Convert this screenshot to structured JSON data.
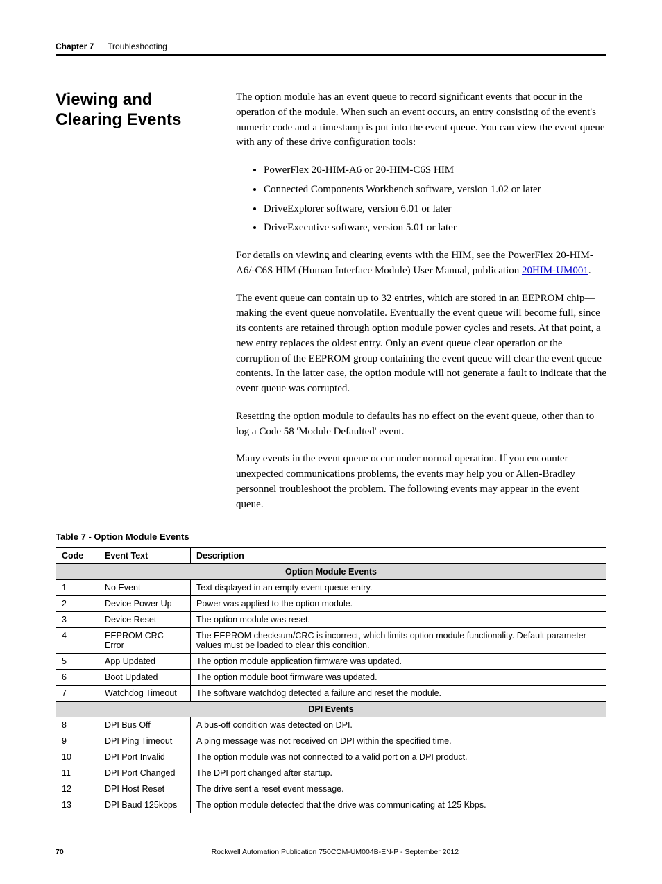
{
  "header": {
    "chapter": "Chapter 7",
    "title": "Troubleshooting"
  },
  "section": {
    "title": "Viewing and Clearing Events"
  },
  "body": {
    "p1": "The option module has an event queue to record significant events that occur in the operation of the module. When such an event occurs, an entry consisting of the event's numeric code and a timestamp is put into the event queue. You can view the event queue with any of these drive configuration tools:",
    "bullets": [
      "PowerFlex 20-HIM-A6 or 20-HIM-C6S HIM",
      "Connected Components Workbench software, version 1.02 or later",
      "DriveExplorer software, version 6.01 or later",
      "DriveExecutive software, version 5.01 or later"
    ],
    "p2a": "For details on viewing and clearing events with the HIM, see the PowerFlex 20-HIM-A6/-C6S HIM (Human Interface Module) User Manual, publication ",
    "p2link": "20HIM-UM001",
    "p2b": ".",
    "p3": "The event queue can contain up to 32 entries, which are stored in an EEPROM chip—making the event queue nonvolatile. Eventually the event queue will become full, since its contents are retained through option module power cycles and resets. At that point, a new entry replaces the oldest entry. Only an event queue clear operation or the corruption of the EEPROM group containing the event queue will clear the event queue contents. In the latter case, the option module will not generate a fault to indicate that the event queue was corrupted.",
    "p4": "Resetting the option module to defaults has no effect on the event queue, other than to log a Code 58 'Module Defaulted' event.",
    "p5": "Many events in the event queue occur under normal operation. If you encounter unexpected communications problems, the events may help you or Allen-Bradley personnel troubleshoot the problem. The following events may appear in the event queue."
  },
  "table": {
    "caption": "Table 7 - Option Module Events",
    "headers": {
      "code": "Code",
      "event": "Event Text",
      "desc": "Description"
    },
    "section1": "Option Module Events",
    "rows1": [
      {
        "code": "1",
        "event": "No Event",
        "desc": "Text displayed in an empty event queue entry."
      },
      {
        "code": "2",
        "event": "Device Power Up",
        "desc": "Power was applied to the option module."
      },
      {
        "code": "3",
        "event": "Device Reset",
        "desc": "The option module was reset."
      },
      {
        "code": "4",
        "event": "EEPROM CRC Error",
        "desc": "The EEPROM checksum/CRC is incorrect, which limits option module functionality. Default parameter values must be loaded to clear this condition."
      },
      {
        "code": "5",
        "event": "App Updated",
        "desc": "The option module application firmware was updated."
      },
      {
        "code": "6",
        "event": "Boot Updated",
        "desc": "The option module boot firmware was updated."
      },
      {
        "code": "7",
        "event": "Watchdog Timeout",
        "desc": "The software watchdog detected a failure and reset the module."
      }
    ],
    "section2": "DPI Events",
    "rows2": [
      {
        "code": "8",
        "event": "DPI Bus Off",
        "desc": "A bus-off condition was detected on DPI."
      },
      {
        "code": "9",
        "event": "DPI Ping Timeout",
        "desc": "A ping message was not received on DPI within the specified time."
      },
      {
        "code": "10",
        "event": "DPI Port Invalid",
        "desc": "The option module was not connected to a valid port on a DPI product."
      },
      {
        "code": "11",
        "event": "DPI Port Changed",
        "desc": "The DPI port changed after startup."
      },
      {
        "code": "12",
        "event": "DPI Host Reset",
        "desc": "The drive sent a reset event message."
      },
      {
        "code": "13",
        "event": "DPI Baud 125kbps",
        "desc": "The option module detected that the drive was communicating at 125 Kbps."
      }
    ]
  },
  "footer": {
    "page": "70",
    "pub": "Rockwell Automation Publication 750COM-UM004B-EN-P - September 2012"
  }
}
